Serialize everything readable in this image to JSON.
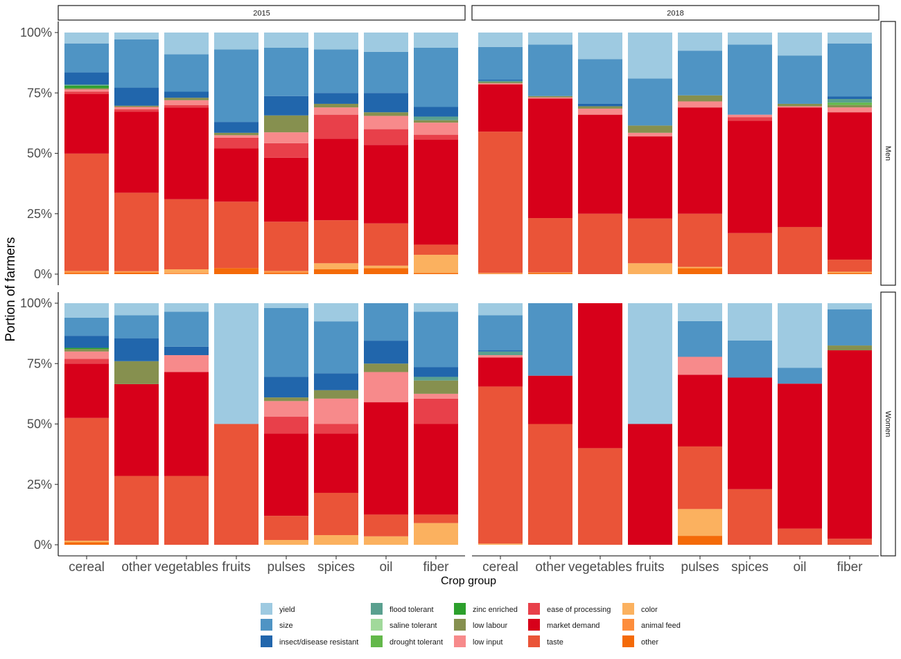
{
  "chart_data": {
    "type": "bar",
    "stacked": true,
    "normalized": true,
    "xlabel": "Crop group",
    "ylabel": "Portion of farmers",
    "ylim": [
      0,
      1
    ],
    "yticks": [
      0,
      0.25,
      0.5,
      0.75,
      1
    ],
    "ytick_labels": [
      "0%",
      "25%",
      "50%",
      "75%",
      "100%"
    ],
    "grid": false,
    "legend_position": "bottom",
    "facet_columns": [
      "2015",
      "2018"
    ],
    "facet_rows": [
      "Men",
      "Women"
    ],
    "categories": [
      "cereal",
      "other",
      "vegetables",
      "fruits",
      "pulses",
      "spices",
      "oil",
      "fiber"
    ],
    "stack_order_bottom_to_top": [
      "other",
      "animal feed",
      "color",
      "taste",
      "market demand",
      "ease of processing",
      "low input",
      "low labour",
      "zinc enriched",
      "drought tolerant",
      "saline tolerant",
      "flood tolerant",
      "insect/disease resistant",
      "size",
      "yield"
    ],
    "legend": [
      {
        "name": "yield",
        "color": "#9ecae1"
      },
      {
        "name": "size",
        "color": "#4f94c4"
      },
      {
        "name": "insect/disease resistant",
        "color": "#2166ac"
      },
      {
        "name": "flood tolerant",
        "color": "#5aa08f"
      },
      {
        "name": "saline tolerant",
        "color": "#a1d99b"
      },
      {
        "name": "drought tolerant",
        "color": "#63b84a"
      },
      {
        "name": "zinc enriched",
        "color": "#2ca02c"
      },
      {
        "name": "low labour",
        "color": "#86904f"
      },
      {
        "name": "low input",
        "color": "#f78a8b"
      },
      {
        "name": "ease of processing",
        "color": "#e8404a"
      },
      {
        "name": "market demand",
        "color": "#d7001a"
      },
      {
        "name": "taste",
        "color": "#ea5438"
      },
      {
        "name": "color",
        "color": "#fbb15f"
      },
      {
        "name": "animal feed",
        "color": "#fd8d3c"
      },
      {
        "name": "other",
        "color": "#f46a08"
      }
    ],
    "panels": [
      {
        "year": "2015",
        "group": "Men",
        "bars": {
          "cereal": {
            "other": 0.005,
            "animal feed": 0.005,
            "color": 0.003,
            "taste": 0.486,
            "market demand": 0.246,
            "ease of processing": 0.01,
            "low input": 0.01,
            "low labour": 0.005,
            "zinc enriched": 0.01,
            "flood tolerant": 0.005,
            "insect/disease resistant": 0.05,
            "size": 0.12,
            "yield": 0.045
          },
          "other": {
            "other": 0.006,
            "animal feed": 0.004,
            "color": 0.002,
            "taste": 0.325,
            "market demand": 0.335,
            "ease of processing": 0.01,
            "low input": 0.01,
            "low labour": 0.005,
            "insect/disease resistant": 0.075,
            "size": 0.2,
            "yield": 0.028
          },
          "vegetables": {
            "animal feed": 0.005,
            "color": 0.015,
            "taste": 0.29,
            "market demand": 0.38,
            "ease of processing": 0.01,
            "low input": 0.02,
            "low labour": 0.01,
            "insect/disease resistant": 0.025,
            "size": 0.155,
            "yield": 0.09
          },
          "fruits": {
            "other": 0.025,
            "taste": 0.275,
            "market demand": 0.22,
            "ease of processing": 0.045,
            "low input": 0.01,
            "low labour": 0.01,
            "insect/disease resistant": 0.045,
            "size": 0.3,
            "yield": 0.07
          },
          "pulses": {
            "other": 0.005,
            "animal feed": 0.005,
            "color": 0.003,
            "taste": 0.204,
            "market demand": 0.265,
            "ease of processing": 0.06,
            "low input": 0.045,
            "low labour": 0.07,
            "insect/disease resistant": 0.08,
            "size": 0.2,
            "yield": 0.063
          },
          "spices": {
            "other": 0.02,
            "color": 0.025,
            "taste": 0.178,
            "market demand": 0.337,
            "ease of processing": 0.1,
            "low input": 0.03,
            "low labour": 0.015,
            "insect/disease resistant": 0.045,
            "size": 0.18,
            "yield": 0.07
          },
          "oil": {
            "other": 0.025,
            "color": 0.01,
            "taste": 0.175,
            "market demand": 0.325,
            "ease of processing": 0.065,
            "low input": 0.055,
            "low labour": 0.015,
            "insect/disease resistant": 0.08,
            "size": 0.17,
            "yield": 0.08
          },
          "fiber": {
            "other": 0.005,
            "color": 0.075,
            "taste": 0.042,
            "market demand": 0.435,
            "ease of processing": 0.02,
            "low input": 0.05,
            "low labour": 0.01,
            "flood tolerant": 0.015,
            "insect/disease resistant": 0.04,
            "size": 0.245,
            "yield": 0.063
          }
        }
      },
      {
        "year": "2018",
        "group": "Men",
        "bars": {
          "cereal": {
            "other": 0.002,
            "color": 0.003,
            "taste": 0.585,
            "market demand": 0.195,
            "low input": 0.005,
            "low labour": 0.005,
            "flood tolerant": 0.005,
            "insect/disease resistant": 0.005,
            "size": 0.135,
            "yield": 0.06
          },
          "other": {
            "other": 0.005,
            "color": 0.002,
            "taste": 0.225,
            "market demand": 0.495,
            "low input": 0.005,
            "low labour": 0.005,
            "size": 0.213,
            "yield": 0.05
          },
          "vegetables": {
            "taste": 0.25,
            "market demand": 0.41,
            "low input": 0.025,
            "low labour": 0.01,
            "insect/disease resistant": 0.01,
            "size": 0.185,
            "yield": 0.11
          },
          "fruits": {
            "color": 0.045,
            "taste": 0.185,
            "market demand": 0.34,
            "low input": 0.015,
            "low labour": 0.03,
            "size": 0.195,
            "yield": 0.19
          },
          "pulses": {
            "other": 0.025,
            "color": 0.005,
            "taste": 0.22,
            "market demand": 0.44,
            "low input": 0.025,
            "low labour": 0.025,
            "size": 0.185,
            "yield": 0.075
          },
          "spices": {
            "taste": 0.17,
            "market demand": 0.465,
            "ease of processing": 0.015,
            "low input": 0.01,
            "size": 0.29,
            "yield": 0.05
          },
          "oil": {
            "taste": 0.195,
            "market demand": 0.495,
            "low input": 0.005,
            "low labour": 0.01,
            "size": 0.2,
            "yield": 0.095
          },
          "fiber": {
            "other": 0.005,
            "color": 0.005,
            "taste": 0.05,
            "market demand": 0.61,
            "low input": 0.02,
            "low labour": 0.01,
            "drought tolerant": 0.01,
            "flood tolerant": 0.015,
            "insect/disease resistant": 0.01,
            "size": 0.22,
            "yield": 0.045
          }
        }
      },
      {
        "year": "2015",
        "group": "Women",
        "bars": {
          "cereal": {
            "other": 0.01,
            "color": 0.007,
            "taste": 0.508,
            "market demand": 0.225,
            "ease of processing": 0.02,
            "low input": 0.03,
            "low labour": 0.01,
            "zinc enriched": 0.005,
            "insect/disease resistant": 0.05,
            "size": 0.075,
            "yield": 0.06
          },
          "other": {
            "taste": 0.285,
            "market demand": 0.38,
            "low labour": 0.095,
            "insect/disease resistant": 0.095,
            "size": 0.095,
            "yield": 0.05
          },
          "vegetables": {
            "taste": 0.285,
            "market demand": 0.43,
            "low input": 0.07,
            "insect/disease resistant": 0.035,
            "size": 0.145,
            "yield": 0.035
          },
          "fruits": {
            "taste": 0.5,
            "yield": 0.5
          },
          "pulses": {
            "color": 0.02,
            "taste": 0.1,
            "market demand": 0.34,
            "ease of processing": 0.07,
            "low input": 0.065,
            "low labour": 0.015,
            "insect/disease resistant": 0.085,
            "size": 0.285,
            "yield": 0.02
          },
          "spices": {
            "color": 0.04,
            "taste": 0.175,
            "market demand": 0.245,
            "ease of processing": 0.04,
            "low input": 0.105,
            "low labour": 0.035,
            "insect/disease resistant": 0.07,
            "size": 0.215,
            "yield": 0.075
          },
          "oil": {
            "color": 0.035,
            "taste": 0.09,
            "market demand": 0.465,
            "low input": 0.125,
            "low labour": 0.035,
            "insect/disease resistant": 0.095,
            "size": 0.155
          },
          "fiber": {
            "color": 0.09,
            "taste": 0.035,
            "market demand": 0.375,
            "ease of processing": 0.105,
            "low input": 0.02,
            "low labour": 0.055,
            "flood tolerant": 0.015,
            "insect/disease resistant": 0.04,
            "size": 0.23,
            "yield": 0.035
          }
        }
      },
      {
        "year": "2018",
        "group": "Women",
        "bars": {
          "cereal": {
            "color": 0.005,
            "taste": 0.65,
            "market demand": 0.12,
            "low input": 0.01,
            "flood tolerant": 0.015,
            "insect/disease resistant": 0.005,
            "size": 0.145,
            "yield": 0.05
          },
          "other": {
            "taste": 0.5,
            "market demand": 0.2,
            "size": 0.3
          },
          "vegetables": {
            "taste": 0.4,
            "market demand": 0.6
          },
          "fruits": {
            "market demand": 0.5,
            "yield": 0.5
          },
          "pulses": {
            "other": 0.037,
            "color": 0.111,
            "taste": 0.259,
            "market demand": 0.297,
            "low input": 0.074,
            "size": 0.148,
            "yield": 0.074
          },
          "spices": {
            "taste": 0.23,
            "market demand": 0.462,
            "size": 0.154,
            "yield": 0.154
          },
          "oil": {
            "taste": 0.067,
            "market demand": 0.6,
            "size": 0.066,
            "yield": 0.267
          },
          "fiber": {
            "taste": 0.025,
            "market demand": 0.78,
            "low labour": 0.02,
            "size": 0.15,
            "yield": 0.025
          }
        }
      }
    ]
  }
}
